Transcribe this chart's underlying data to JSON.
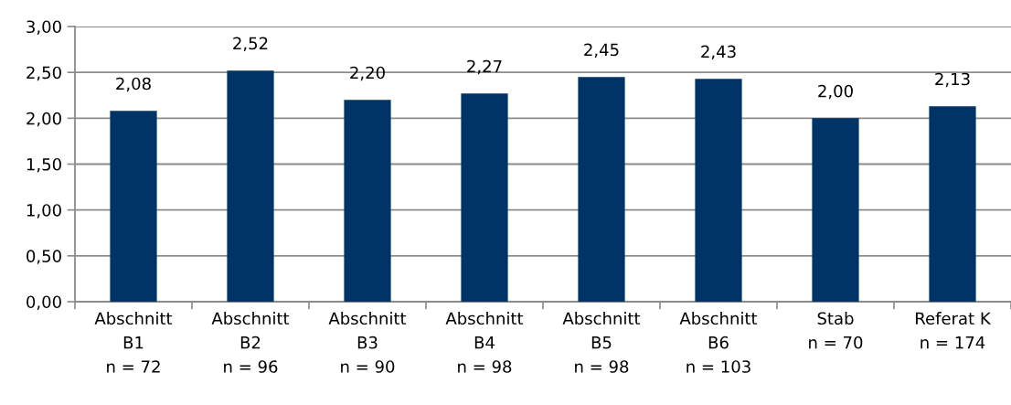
{
  "chart_data": {
    "type": "bar",
    "categories": [
      "Abschnitt\nB1\nn = 72",
      "Abschnitt\nB2\nn = 96",
      "Abschnitt\nB3\nn = 90",
      "Abschnitt\nB4\nn = 98",
      "Abschnitt\nB5\nn = 98",
      "Abschnitt\nB6\nn = 103",
      "Stab\nn = 70",
      "Referat K\nn = 174"
    ],
    "values": [
      2.08,
      2.52,
      2.2,
      2.27,
      2.45,
      2.43,
      2.0,
      2.13
    ],
    "value_labels": [
      "2,08",
      "2,52",
      "2,20",
      "2,27",
      "2,45",
      "2,43",
      "2,00",
      "2,13"
    ],
    "color": "#003366",
    "ylim": [
      0,
      3
    ],
    "yticks": [
      {
        "value": 0,
        "label": "0,00"
      },
      {
        "value": 0.5,
        "label": "0,50"
      },
      {
        "value": 1,
        "label": "1,00"
      },
      {
        "value": 1.5,
        "label": "1,50"
      },
      {
        "value": 2,
        "label": "2,00"
      },
      {
        "value": 2.5,
        "label": "2,50"
      },
      {
        "value": 3,
        "label": "3,00"
      }
    ],
    "grid": "y"
  }
}
